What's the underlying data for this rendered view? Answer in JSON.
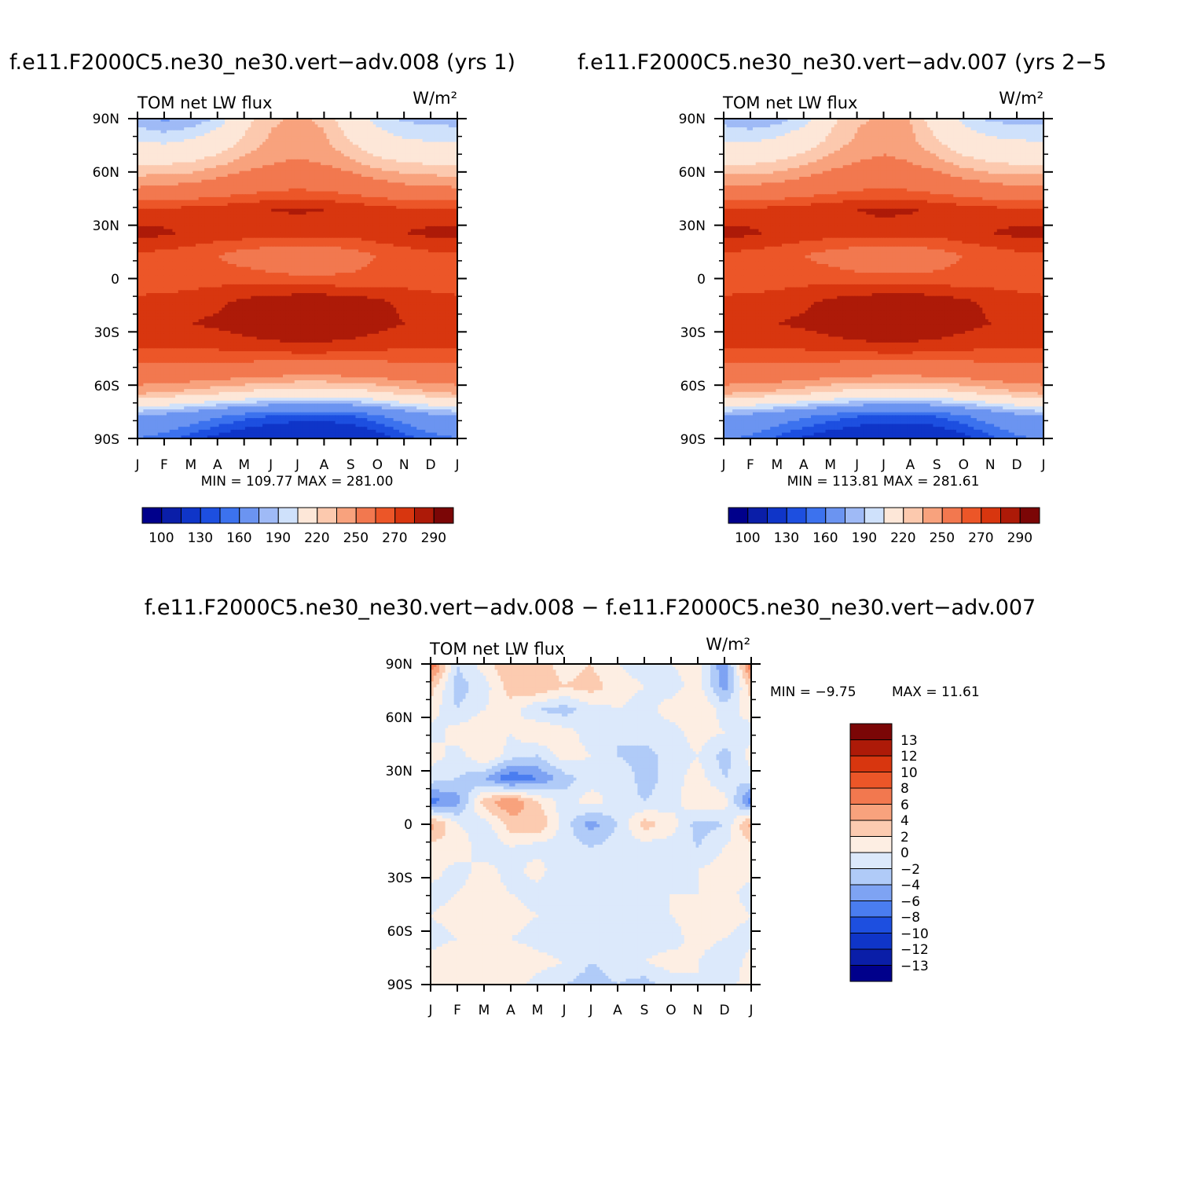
{
  "colors": {
    "absolute": [
      "#00008b",
      "#0a1ea8",
      "#0f35c8",
      "#1d4fe0",
      "#3c72ee",
      "#6b94f1",
      "#9fbaf6",
      "#cfe1fb",
      "#fde7d8",
      "#fcc9ae",
      "#f8a27d",
      "#f2784f",
      "#ec5628",
      "#d8360f",
      "#ad1a08",
      "#7b0606"
    ],
    "difference": [
      "#00008b",
      "#0a1ea8",
      "#0f35c8",
      "#1d4fe0",
      "#4a7df0",
      "#7ea3f3",
      "#b0cbf8",
      "#dce9fb",
      "#fdeee3",
      "#fccbb0",
      "#f8a27d",
      "#f2784f",
      "#ec5628",
      "#d8360f",
      "#ad1a08",
      "#7b0606"
    ]
  },
  "chart_data": [
    {
      "type": "heatmap",
      "id": "panel1",
      "title": "f.e11.F2000C5.ne30_ne30.vert−adv.008 (yrs 1)",
      "left_label": "TOM net LW flux",
      "right_label": "W/m²",
      "x_ticks": [
        "J",
        "F",
        "M",
        "A",
        "M",
        "J",
        "J",
        "A",
        "S",
        "O",
        "N",
        "D",
        "J"
      ],
      "y_ticks": [
        "90N",
        "60N",
        "30N",
        "0",
        "30S",
        "60S",
        "90S"
      ],
      "stats": "MIN = 109.77 MAX = 281.00",
      "min": 109.77,
      "max": 281.0,
      "levels": [
        100,
        110,
        120,
        130,
        140,
        150,
        160,
        170,
        180,
        190,
        200,
        210,
        220,
        230,
        240,
        250,
        260,
        270,
        280,
        290
      ],
      "colorbar_labels": [
        "100",
        "130",
        "160",
        "190",
        "220",
        "250",
        "270",
        "290"
      ],
      "colorbar_bins": 16,
      "months": [
        "Jan",
        "Feb",
        "Mar",
        "Apr",
        "May",
        "Jun",
        "Jul",
        "Aug",
        "Sep",
        "Oct",
        "Nov",
        "Dec",
        "Jan"
      ],
      "latitudes": [
        90,
        75,
        60,
        45,
        30,
        20,
        10,
        0,
        -10,
        -20,
        -30,
        -45,
        -60,
        -75,
        -90
      ],
      "values": [
        [
          175,
          168,
          172,
          182,
          205,
          218,
          222,
          218,
          200,
          185,
          178,
          176,
          175
        ],
        [
          190,
          188,
          192,
          200,
          212,
          222,
          225,
          222,
          210,
          198,
          192,
          190,
          190
        ],
        [
          210,
          210,
          212,
          218,
          225,
          230,
          232,
          230,
          224,
          216,
          212,
          210,
          210
        ],
        [
          230,
          232,
          234,
          238,
          242,
          246,
          248,
          246,
          242,
          237,
          233,
          231,
          230
        ],
        [
          262,
          263,
          264,
          266,
          268,
          270,
          271,
          270,
          268,
          265,
          263,
          262,
          262
        ],
        [
          274,
          272,
          268,
          266,
          266,
          266,
          266,
          266,
          264,
          267,
          270,
          273,
          274
        ],
        [
          258,
          256,
          254,
          250,
          244,
          240,
          238,
          240,
          244,
          250,
          254,
          257,
          258
        ],
        [
          250,
          252,
          254,
          256,
          256,
          254,
          252,
          252,
          252,
          254,
          254,
          252,
          250
        ],
        [
          264,
          264,
          266,
          268,
          272,
          276,
          278,
          278,
          276,
          272,
          268,
          266,
          264
        ],
        [
          268,
          268,
          270,
          272,
          276,
          280,
          281,
          281,
          279,
          274,
          270,
          269,
          268
        ],
        [
          260,
          260,
          261,
          262,
          264,
          266,
          267,
          267,
          265,
          263,
          261,
          260,
          260
        ],
        [
          245,
          246,
          245,
          244,
          242,
          240,
          239,
          239,
          240,
          242,
          244,
          245,
          245
        ],
        [
          222,
          220,
          216,
          212,
          208,
          204,
          202,
          202,
          204,
          208,
          214,
          219,
          222
        ],
        [
          170,
          166,
          160,
          152,
          145,
          140,
          137,
          137,
          140,
          148,
          158,
          166,
          170
        ],
        [
          150,
          145,
          135,
          125,
          118,
          113,
          110,
          110,
          113,
          122,
          135,
          145,
          150
        ]
      ]
    },
    {
      "type": "heatmap",
      "id": "panel2",
      "title": "f.e11.F2000C5.ne30_ne30.vert−adv.007 (yrs 2−5",
      "left_label": "TOM net LW flux",
      "right_label": "W/m²",
      "x_ticks": [
        "J",
        "F",
        "M",
        "A",
        "M",
        "J",
        "J",
        "A",
        "S",
        "O",
        "N",
        "D",
        "J"
      ],
      "y_ticks": [
        "90N",
        "60N",
        "30N",
        "0",
        "30S",
        "60S",
        "90S"
      ],
      "stats": "MIN = 113.81 MAX = 281.61",
      "min": 113.81,
      "max": 281.61,
      "levels": [
        100,
        110,
        120,
        130,
        140,
        150,
        160,
        170,
        180,
        190,
        200,
        210,
        220,
        230,
        240,
        250,
        260,
        270,
        280,
        290
      ],
      "colorbar_labels": [
        "100",
        "130",
        "160",
        "190",
        "220",
        "250",
        "270",
        "290"
      ],
      "colorbar_bins": 16,
      "months": [
        "Jan",
        "Feb",
        "Mar",
        "Apr",
        "May",
        "Jun",
        "Jul",
        "Aug",
        "Sep",
        "Oct",
        "Nov",
        "Dec",
        "Jan"
      ],
      "latitudes": [
        90,
        75,
        60,
        45,
        30,
        20,
        10,
        0,
        -10,
        -20,
        -30,
        -45,
        -60,
        -75,
        -90
      ],
      "values": [
        [
          176,
          172,
          175,
          184,
          206,
          218,
          222,
          220,
          202,
          186,
          178,
          176,
          176
        ],
        [
          190,
          189,
          193,
          201,
          213,
          222,
          226,
          223,
          211,
          199,
          193,
          191,
          190
        ],
        [
          210,
          210,
          213,
          219,
          226,
          231,
          233,
          231,
          225,
          217,
          212,
          210,
          210
        ],
        [
          231,
          232,
          234,
          238,
          243,
          247,
          248,
          247,
          243,
          238,
          234,
          232,
          231
        ],
        [
          262,
          263,
          264,
          266,
          268,
          270,
          272,
          271,
          268,
          266,
          264,
          262,
          262
        ],
        [
          274,
          272,
          268,
          266,
          265,
          266,
          266,
          265,
          264,
          267,
          270,
          273,
          274
        ],
        [
          258,
          256,
          254,
          250,
          245,
          241,
          239,
          240,
          244,
          250,
          254,
          257,
          258
        ],
        [
          250,
          252,
          254,
          256,
          256,
          254,
          253,
          253,
          253,
          254,
          254,
          252,
          250
        ],
        [
          264,
          264,
          266,
          268,
          272,
          276,
          278,
          279,
          276,
          272,
          268,
          266,
          264
        ],
        [
          268,
          268,
          270,
          272,
          276,
          280,
          281,
          281,
          279,
          274,
          270,
          269,
          268
        ],
        [
          262,
          261,
          261,
          262,
          264,
          266,
          267,
          267,
          265,
          263,
          261,
          261,
          262
        ],
        [
          245,
          246,
          245,
          244,
          242,
          240,
          239,
          239,
          240,
          242,
          244,
          245,
          245
        ],
        [
          222,
          220,
          217,
          213,
          208,
          205,
          203,
          203,
          205,
          209,
          214,
          219,
          222
        ],
        [
          171,
          166,
          160,
          153,
          146,
          141,
          138,
          138,
          141,
          149,
          158,
          166,
          171
        ],
        [
          152,
          147,
          138,
          128,
          121,
          116,
          114,
          114,
          116,
          125,
          137,
          147,
          152
        ]
      ]
    },
    {
      "type": "heatmap",
      "id": "panel3",
      "title": "f.e11.F2000C5.ne30_ne30.vert−adv.008 − f.e11.F2000C5.ne30_ne30.vert−adv.007",
      "left_label": "TOM net LW flux",
      "right_label": "W/m²",
      "x_ticks": [
        "J",
        "F",
        "M",
        "A",
        "M",
        "J",
        "J",
        "A",
        "S",
        "O",
        "N",
        "D",
        "J"
      ],
      "y_ticks": [
        "90N",
        "60N",
        "30N",
        "0",
        "30S",
        "60S",
        "90S"
      ],
      "stats_min": "MIN =  −9.75",
      "stats_max": "MAX =  11.61",
      "min": -9.75,
      "max": 11.61,
      "levels": [
        -13,
        -12,
        -10,
        -8,
        -6,
        -4,
        -2,
        0,
        2,
        4,
        6,
        8,
        10,
        12,
        13
      ],
      "colorbar_labels": [
        "13",
        "12",
        "10",
        "8",
        "6",
        "4",
        "2",
        "0",
        "−2",
        "−4",
        "−6",
        "−8",
        "−10",
        "−12",
        "−13"
      ],
      "colorbar_bins": 16,
      "latitudes": [
        90,
        75,
        60,
        45,
        30,
        20,
        10,
        0,
        -10,
        -20,
        -30,
        -45,
        -60,
        -75,
        -90
      ],
      "values": [
        [
          8,
          -2,
          1,
          4,
          3,
          1,
          2,
          0,
          -1,
          0,
          1,
          -6,
          8
        ],
        [
          3,
          -3,
          -1,
          3,
          4,
          2,
          3,
          1,
          0,
          -1,
          1,
          -5,
          3
        ],
        [
          1,
          -2,
          0,
          1,
          -2,
          -3,
          -1,
          0,
          -1,
          1,
          2,
          -1,
          1
        ],
        [
          -1,
          1,
          2,
          0,
          2,
          1,
          -1,
          -2,
          -1,
          -1,
          1,
          0,
          -1
        ],
        [
          1,
          -1,
          2,
          -1,
          -2,
          1,
          0,
          -2,
          -3,
          -1,
          0,
          -3,
          1
        ],
        [
          -1,
          -2,
          -4,
          -8,
          -6,
          -3,
          -1,
          0,
          -3,
          -1,
          1,
          -2,
          -1
        ],
        [
          -7,
          -5,
          3,
          6,
          2,
          -1,
          1,
          -1,
          -2,
          -1,
          2,
          1,
          -7
        ],
        [
          5,
          0,
          -1,
          3,
          4,
          -1,
          -5,
          -2,
          3,
          1,
          -3,
          -2,
          5
        ],
        [
          1,
          2,
          -2,
          0,
          -1,
          -1,
          -2,
          -1,
          -1,
          -1,
          -2,
          0,
          1
        ],
        [
          1,
          -1,
          1,
          -1,
          1,
          -2,
          -1,
          -2,
          -1,
          -1,
          0,
          1,
          1
        ],
        [
          -1,
          0,
          1,
          0,
          -1,
          -1,
          -2,
          -1,
          -1,
          0,
          0,
          1,
          -1
        ],
        [
          0,
          1,
          2,
          1,
          0,
          -1,
          -1,
          -1,
          -1,
          0,
          1,
          1,
          0
        ],
        [
          -1,
          0,
          1,
          0,
          -1,
          -2,
          0,
          -1,
          -1,
          -1,
          1,
          0,
          -1
        ],
        [
          1,
          2,
          1,
          2,
          1,
          0,
          -2,
          -1,
          0,
          1,
          0,
          -2,
          1
        ],
        [
          2,
          0,
          0,
          1,
          -1,
          -2,
          -3,
          -2,
          -3,
          -1,
          0,
          -2,
          2
        ]
      ]
    }
  ]
}
